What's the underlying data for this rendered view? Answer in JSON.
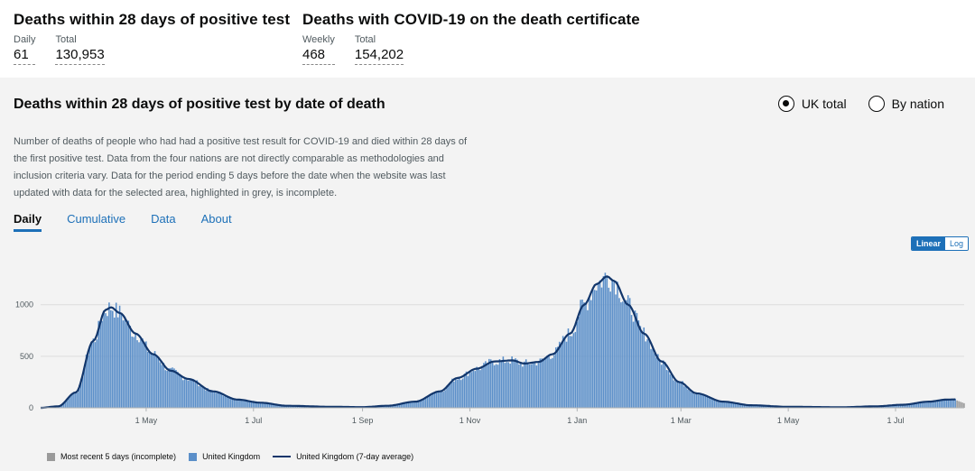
{
  "headline": {
    "blocks": [
      {
        "title": "Deaths within 28 days of positive test",
        "metrics": [
          {
            "label": "Daily",
            "value": "61"
          },
          {
            "label": "Total",
            "value": "130,953"
          }
        ]
      },
      {
        "title": "Deaths with COVID-19 on the death certificate",
        "metrics": [
          {
            "label": "Weekly",
            "value": "468"
          },
          {
            "label": "Total",
            "value": "154,202"
          }
        ]
      }
    ]
  },
  "card": {
    "title": "Deaths within 28 days of positive test by date of death",
    "description": "Number of deaths of people who had had a positive test result for COVID-19 and died within 28 days of the first positive test. Data from the four nations are not directly comparable as methodologies and inclusion criteria vary. Data for the period ending 5 days before the date when the website was last updated with data for the selected area, highlighted in grey, is incomplete.",
    "radios": [
      {
        "label": "UK total",
        "checked": true
      },
      {
        "label": "By nation",
        "checked": false
      }
    ],
    "tabs": [
      {
        "label": "Daily",
        "active": true
      },
      {
        "label": "Cumulative",
        "active": false
      },
      {
        "label": "Data",
        "active": false
      },
      {
        "label": "About",
        "active": false
      }
    ],
    "scale": [
      {
        "label": "Linear",
        "active": true
      },
      {
        "label": "Log",
        "active": false
      }
    ],
    "legend": {
      "incomplete": "Most recent 5 days (incomplete)",
      "bars": "United Kingdom",
      "line": "United Kingdom (7-day average)"
    }
  },
  "chart_data": {
    "type": "bar",
    "title": "Deaths within 28 days of positive test by date of death",
    "ylim": [
      0,
      1400
    ],
    "y_ticks": [
      0,
      500,
      1000
    ],
    "x_start": "2020-03-02",
    "x_end": "2021-08-09",
    "x_ticks": [
      {
        "label": "1 May",
        "date": "2020-05-01"
      },
      {
        "label": "1 Jul",
        "date": "2020-07-01"
      },
      {
        "label": "1 Sep",
        "date": "2020-09-01"
      },
      {
        "label": "1 Nov",
        "date": "2020-11-01"
      },
      {
        "label": "1 Jan",
        "date": "2021-01-01"
      },
      {
        "label": "1 Mar",
        "date": "2021-03-01"
      },
      {
        "label": "1 May",
        "date": "2021-05-01"
      },
      {
        "label": "1 Jul",
        "date": "2021-07-01"
      }
    ],
    "series": [
      {
        "name": "United Kingdom (7-day average)",
        "type": "line",
        "anchors": [
          {
            "date": "2020-03-02",
            "value": 0
          },
          {
            "date": "2020-03-12",
            "value": 15
          },
          {
            "date": "2020-03-22",
            "value": 150
          },
          {
            "date": "2020-04-01",
            "value": 650
          },
          {
            "date": "2020-04-08",
            "value": 950
          },
          {
            "date": "2020-04-11",
            "value": 975
          },
          {
            "date": "2020-04-16",
            "value": 920
          },
          {
            "date": "2020-04-25",
            "value": 720
          },
          {
            "date": "2020-05-05",
            "value": 520
          },
          {
            "date": "2020-05-15",
            "value": 360
          },
          {
            "date": "2020-05-25",
            "value": 280
          },
          {
            "date": "2020-06-08",
            "value": 160
          },
          {
            "date": "2020-06-22",
            "value": 80
          },
          {
            "date": "2020-07-05",
            "value": 50
          },
          {
            "date": "2020-07-20",
            "value": 20
          },
          {
            "date": "2020-08-15",
            "value": 10
          },
          {
            "date": "2020-09-01",
            "value": 7
          },
          {
            "date": "2020-09-15",
            "value": 20
          },
          {
            "date": "2020-10-01",
            "value": 60
          },
          {
            "date": "2020-10-15",
            "value": 160
          },
          {
            "date": "2020-10-25",
            "value": 290
          },
          {
            "date": "2020-11-05",
            "value": 380
          },
          {
            "date": "2020-11-15",
            "value": 450
          },
          {
            "date": "2020-11-25",
            "value": 460
          },
          {
            "date": "2020-12-02",
            "value": 430
          },
          {
            "date": "2020-12-10",
            "value": 445
          },
          {
            "date": "2020-12-18",
            "value": 520
          },
          {
            "date": "2020-12-28",
            "value": 720
          },
          {
            "date": "2021-01-05",
            "value": 1000
          },
          {
            "date": "2021-01-12",
            "value": 1200
          },
          {
            "date": "2021-01-18",
            "value": 1275
          },
          {
            "date": "2021-01-22",
            "value": 1230
          },
          {
            "date": "2021-01-30",
            "value": 1000
          },
          {
            "date": "2021-02-08",
            "value": 720
          },
          {
            "date": "2021-02-18",
            "value": 450
          },
          {
            "date": "2021-02-28",
            "value": 250
          },
          {
            "date": "2021-03-10",
            "value": 140
          },
          {
            "date": "2021-03-25",
            "value": 60
          },
          {
            "date": "2021-04-10",
            "value": 25
          },
          {
            "date": "2021-05-01",
            "value": 10
          },
          {
            "date": "2021-06-01",
            "value": 6
          },
          {
            "date": "2021-06-20",
            "value": 15
          },
          {
            "date": "2021-07-05",
            "value": 30
          },
          {
            "date": "2021-07-20",
            "value": 60
          },
          {
            "date": "2021-07-30",
            "value": 80
          },
          {
            "date": "2021-08-04",
            "value": 82
          }
        ]
      },
      {
        "name": "United Kingdom",
        "type": "bar",
        "values": "daily bars approximating the 7-day average with day-to-day noise"
      },
      {
        "name": "Most recent 5 days (incomplete)",
        "type": "bar",
        "color": "#9a9a9a"
      }
    ],
    "colors": {
      "bars": "#5b8fc9",
      "line": "#12366b",
      "incomplete": "#9a9a9a",
      "grid": "#dddddd"
    }
  }
}
